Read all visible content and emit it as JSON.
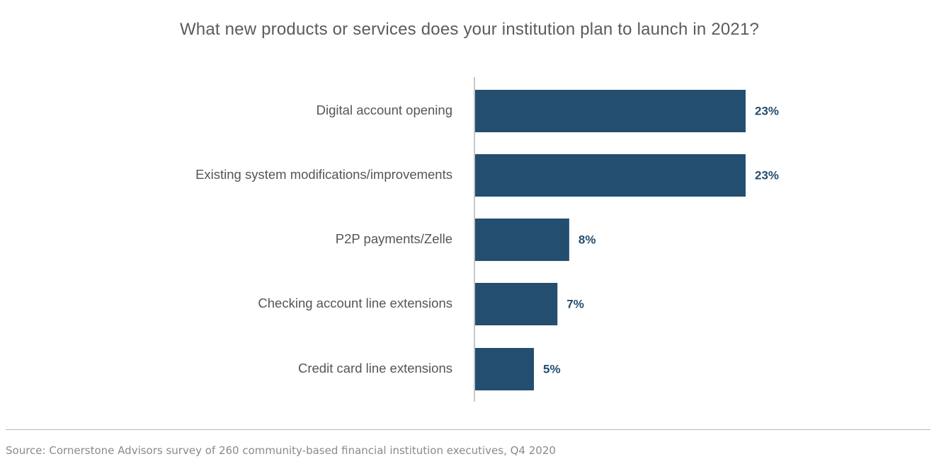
{
  "chart_data": {
    "type": "bar",
    "orientation": "horizontal",
    "title": "What new products or services does your institution plan to launch in 2021?",
    "categories": [
      "Digital account opening",
      "Existing system modifications/improvements",
      "P2P payments/Zelle",
      "Checking account line extensions",
      "Credit card line extensions"
    ],
    "values": [
      23,
      23,
      8,
      7,
      5
    ],
    "value_labels": [
      "23%",
      "23%",
      "8%",
      "7%",
      "5%"
    ],
    "unit": "%",
    "xlim": [
      0,
      25
    ],
    "grid": false,
    "legend": "none",
    "bar_color": "#234e70",
    "label_color": "#234e70"
  },
  "source": "Source: Cornerstone Advisors survey of 260 community-based financial institution executives, Q4 2020"
}
